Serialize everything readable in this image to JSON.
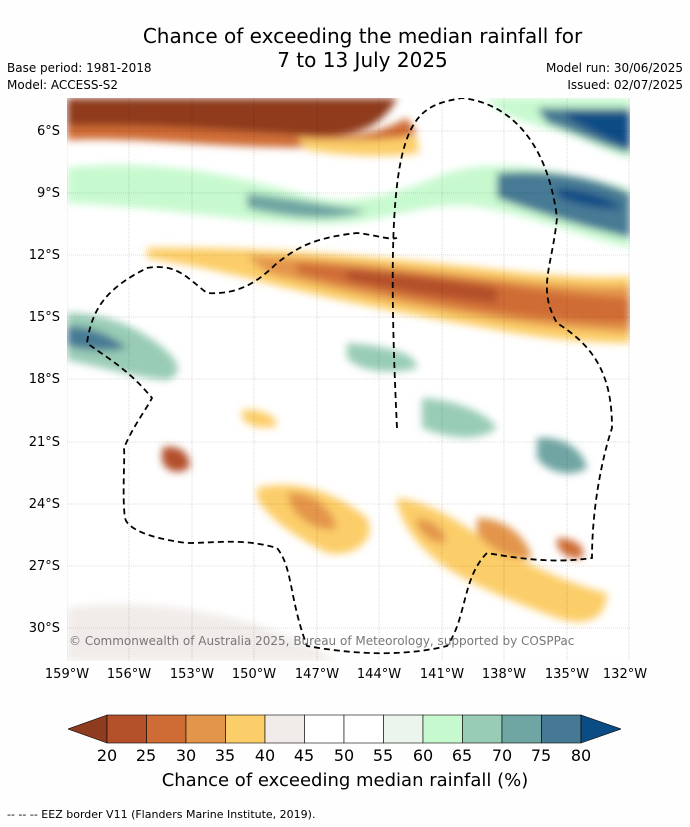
{
  "title_line1": "Chance of exceeding the median rainfall for",
  "title_line2": "7 to 13 July 2025",
  "meta_left": [
    "Base period: 1981-2018",
    "Model: ACCESS-S2"
  ],
  "meta_right": [
    "Model run: 30/06/2025",
    "Issued: 02/07/2025"
  ],
  "y_ticks": [
    "6°S",
    "9°S",
    "12°S",
    "15°S",
    "18°S",
    "21°S",
    "24°S",
    "27°S",
    "30°S"
  ],
  "x_ticks": [
    "159°W",
    "156°W",
    "153°W",
    "150°W",
    "147°W",
    "144°W",
    "141°W",
    "138°W",
    "135°W",
    "132°W"
  ],
  "colorbar_labels": [
    "20",
    "25",
    "30",
    "35",
    "40",
    "45",
    "50",
    "55",
    "60",
    "65",
    "70",
    "75",
    "80"
  ],
  "colorbar_colors": [
    "#8f3b1f",
    "#b3502a",
    "#cf6c36",
    "#e3954b",
    "#fcce69",
    "#f1ece9",
    "#ffffff",
    "#ffffff",
    "#ebf5ec",
    "#c7f9cf",
    "#99ccb5",
    "#6fa5a3",
    "#467a94",
    "#0c4c85"
  ],
  "colorbar_title": "Chance of exceeding median rainfall (%)",
  "credit": "© Commonwealth of Australia 2025, Bureau of Meteorology, supported by COSPPac",
  "footer": "--  --  -- EEZ border V11 (Flanders Marine Institute, 2019)."
}
